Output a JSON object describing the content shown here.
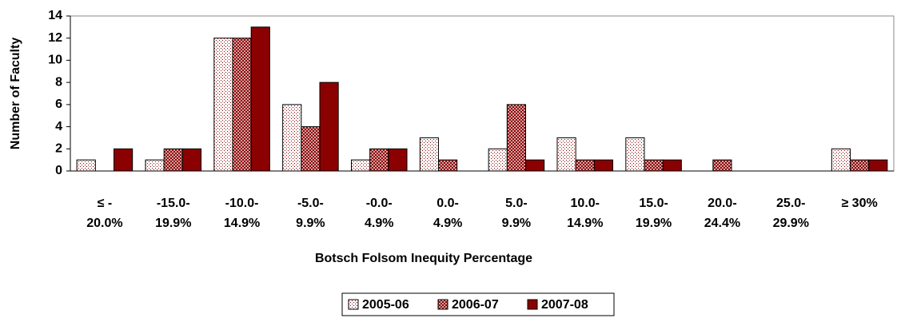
{
  "chart_data": {
    "type": "bar",
    "x_label": "Botsch Folsom Inequity Percentage",
    "y_label": "Number of Faculty",
    "categories": [
      "≤ -\n20.0%",
      "-15.0-\n19.9%",
      "-10.0-\n14.9%",
      "-5.0-\n9.9%",
      "-0.0-\n4.9%",
      "0.0-\n4.9%",
      "5.0-\n9.9%",
      "10.0-\n14.9%",
      "15.0-\n19.9%",
      "20.0-\n24.4%",
      "25.0-\n29.9%",
      "≥ 30%"
    ],
    "series": [
      {
        "name": "2005-06",
        "color": "#8b0000",
        "pattern": "dots",
        "values": [
          1,
          1,
          12,
          6,
          1,
          3,
          2,
          3,
          3,
          0,
          0,
          2
        ]
      },
      {
        "name": "2006-07",
        "color": "#8b0000",
        "pattern": "crosshatch",
        "values": [
          0,
          2,
          12,
          4,
          2,
          1,
          6,
          1,
          1,
          1,
          0,
          1
        ]
      },
      {
        "name": "2007-08",
        "color": "#8b0000",
        "pattern": "solid",
        "values": [
          2,
          2,
          13,
          8,
          2,
          0,
          1,
          1,
          1,
          0,
          0,
          1
        ]
      }
    ],
    "ylim": [
      0,
      14
    ],
    "yticks": [
      0,
      2,
      4,
      6,
      8,
      10,
      12,
      14
    ],
    "grid": false,
    "legend": "bottom"
  }
}
